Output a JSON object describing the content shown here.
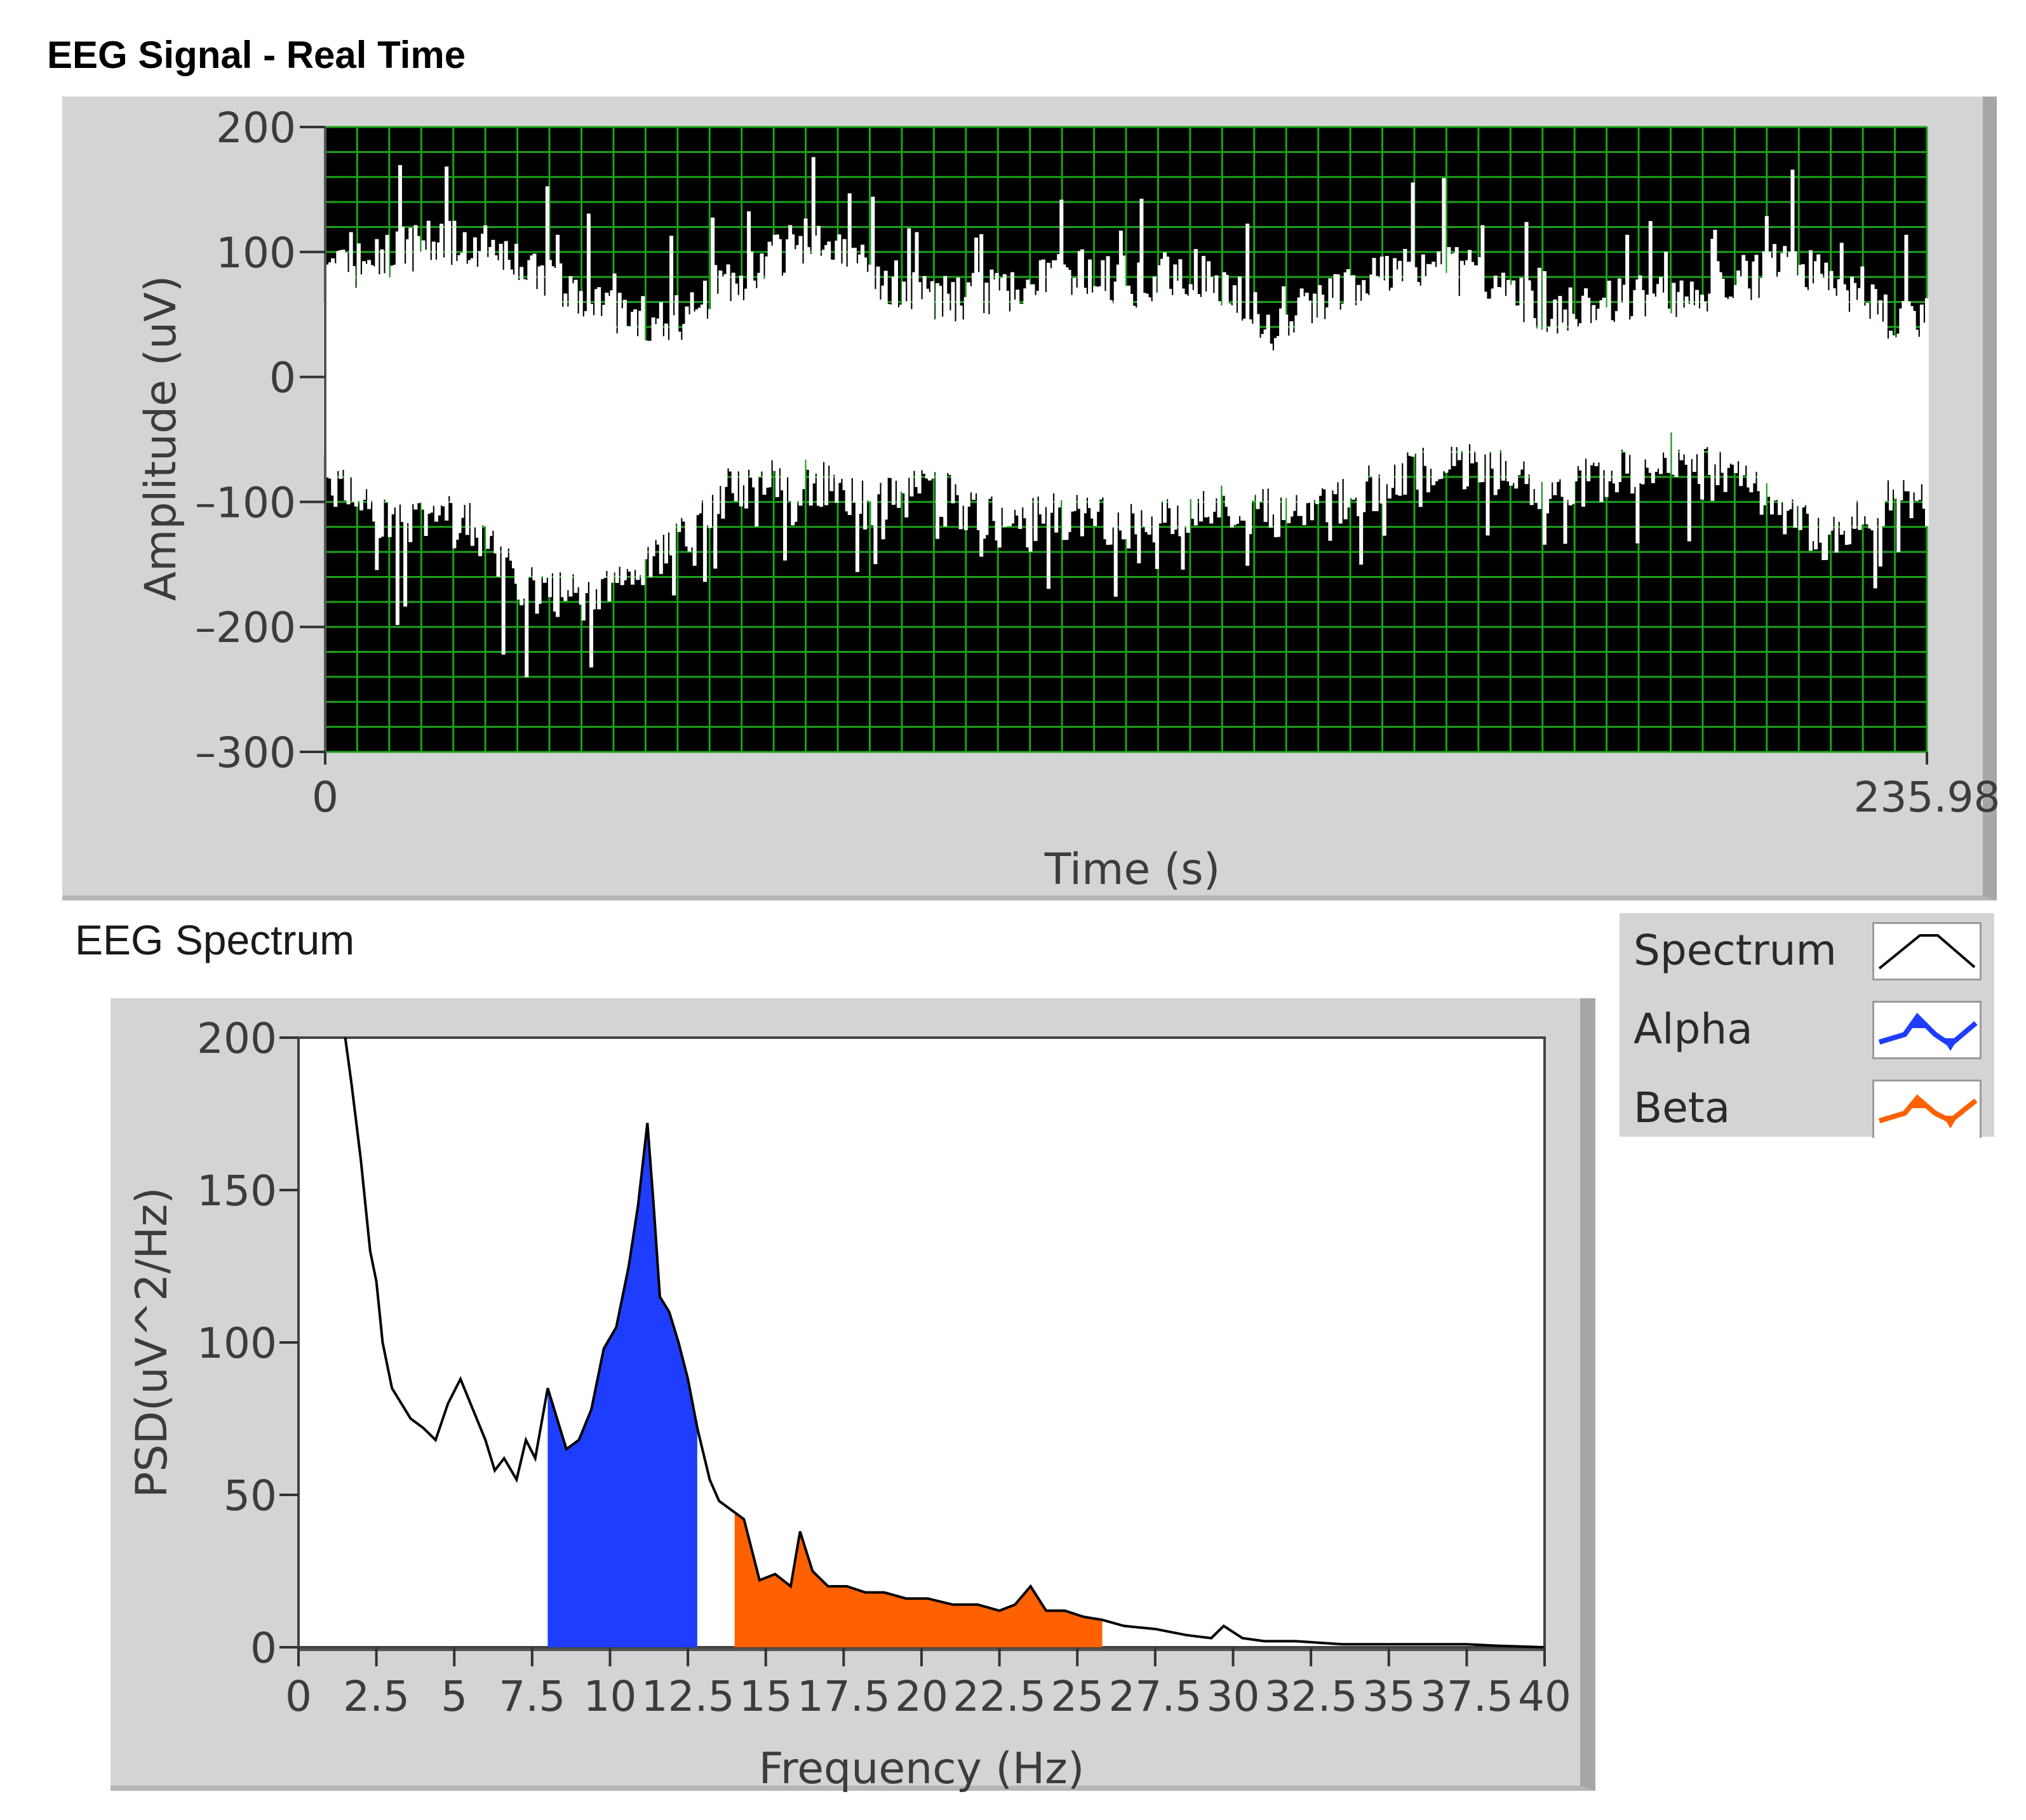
{
  "panel1": {
    "title": "EEG Signal - Real Time"
  },
  "panel2": {
    "title": "EEG Spectrum"
  },
  "legend": {
    "items": [
      {
        "label": "Spectrum",
        "color": "#000000",
        "style": "line"
      },
      {
        "label": "Alpha",
        "color": "#1f3dff",
        "style": "fill"
      },
      {
        "label": "Beta",
        "color": "#ff6000",
        "style": "fill"
      }
    ]
  },
  "chart_data": [
    {
      "type": "line",
      "title": "EEG Signal - Real Time",
      "xlabel": "Time (s)",
      "ylabel": "Amplitude (uV)",
      "xlim": [
        0,
        235.98
      ],
      "ylim": [
        -300,
        200
      ],
      "x_ticks": [
        "0",
        "235.98"
      ],
      "y_ticks": [
        "200",
        "100",
        "0",
        "-100",
        "-200",
        "-300"
      ],
      "grid": true,
      "background_color": "#000000",
      "grid_color": "#1aa31a",
      "line_color": "#ffffff",
      "series": [
        {
          "x": [
            0,
            10,
            20,
            30,
            40,
            50,
            60,
            70,
            80,
            90,
            100,
            110,
            120,
            130,
            140,
            150,
            160,
            170,
            180,
            190,
            200,
            210,
            220,
            230,
            235.98
          ],
          "upper_envelope": [
            80,
            100,
            110,
            90,
            60,
            40,
            75,
            110,
            85,
            60,
            70,
            85,
            75,
            80,
            40,
            70,
            95,
            80,
            50,
            60,
            65,
            80,
            90,
            50,
            50
          ],
          "lower_envelope": [
            -80,
            -120,
            -110,
            -170,
            -180,
            -140,
            -90,
            -80,
            -100,
            -90,
            -120,
            -110,
            -120,
            -100,
            -110,
            -100,
            -75,
            -70,
            -90,
            -80,
            -60,
            -90,
            -130,
            -100,
            -100
          ]
        }
      ]
    },
    {
      "type": "area",
      "xlabel": "Frequency (Hz)",
      "ylabel": "PSD(uV^2/Hz)",
      "xlim": [
        0,
        40
      ],
      "ylim": [
        0,
        200
      ],
      "x_ticks": [
        "0",
        "2.5",
        "5",
        "7.5",
        "10",
        "12.5",
        "15",
        "17.5",
        "20",
        "22.5",
        "25",
        "27.5",
        "30",
        "32.5",
        "35",
        "37.5",
        "40"
      ],
      "y_ticks": [
        "200",
        "150",
        "100",
        "50",
        "0"
      ],
      "grid": false,
      "series": [
        {
          "name": "Spectrum",
          "color": "#000000",
          "x": [
            1.5,
            1.7,
            2.0,
            2.3,
            2.5,
            2.7,
            3.0,
            3.3,
            3.6,
            4.0,
            4.4,
            4.8,
            5.2,
            5.6,
            6.0,
            6.3,
            6.6,
            7.0,
            7.3,
            7.6,
            8.0,
            8.3,
            8.6,
            9.0,
            9.4,
            9.8,
            10.2,
            10.6,
            10.9,
            11.2,
            11.4,
            11.6,
            11.9,
            12.2,
            12.5,
            12.8,
            13.2,
            13.5,
            13.9,
            14.3,
            14.8,
            15.3,
            15.8,
            16.1,
            16.5,
            17.0,
            17.6,
            18.2,
            18.8,
            19.5,
            20.2,
            21.0,
            21.8,
            22.5,
            23.0,
            23.5,
            24.0,
            24.6,
            25.2,
            25.8,
            26.5,
            27.5,
            28.5,
            29.3,
            29.7,
            30.3,
            31.0,
            32.0,
            33.5,
            35.0,
            36.5,
            37.5,
            38.5,
            40.0
          ],
          "y": [
            200,
            185,
            160,
            130,
            120,
            100,
            85,
            80,
            75,
            72,
            68,
            80,
            88,
            78,
            68,
            58,
            62,
            55,
            68,
            62,
            85,
            75,
            65,
            68,
            78,
            98,
            105,
            125,
            145,
            172,
            145,
            115,
            110,
            100,
            88,
            72,
            55,
            48,
            45,
            42,
            22,
            24,
            20,
            38,
            25,
            20,
            20,
            18,
            18,
            16,
            16,
            14,
            14,
            12,
            14,
            20,
            12,
            12,
            10,
            9,
            7,
            6,
            4,
            3,
            7,
            3,
            2,
            2,
            1,
            1,
            1,
            1,
            0.5,
            0
          ]
        },
        {
          "name": "Alpha",
          "color": "#1f3dff",
          "band": [
            8,
            12.8
          ]
        },
        {
          "name": "Beta",
          "color": "#ff6000",
          "band": [
            14,
            25.8
          ]
        }
      ]
    }
  ]
}
